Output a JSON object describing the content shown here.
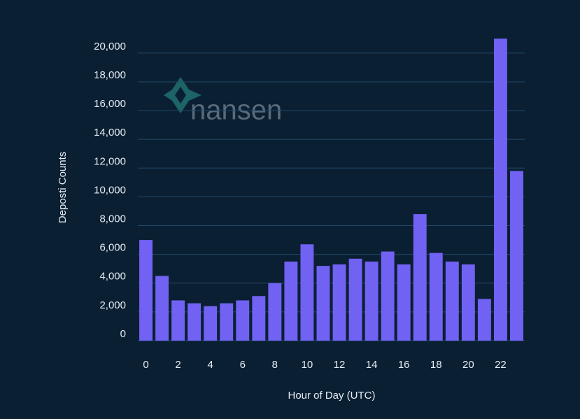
{
  "chart_data": {
    "type": "bar",
    "watermark": "nansen",
    "x_label": "Hour of Day (UTC)",
    "y_label": "Deposti Counts",
    "categories": [
      "0",
      null,
      "2",
      null,
      "4",
      null,
      "6",
      null,
      "8",
      null,
      "10",
      null,
      "12",
      null,
      "14",
      null,
      "16",
      null,
      "18",
      null,
      "20",
      null,
      "22",
      null
    ],
    "values": [
      7000,
      4500,
      2800,
      2600,
      2400,
      2600,
      2800,
      3100,
      4000,
      5500,
      6700,
      5200,
      5300,
      5700,
      5500,
      6200,
      5300,
      8800,
      6100,
      5500,
      5300,
      2900,
      21000,
      11800
    ],
    "color": "#7162f3",
    "ylim": [
      0,
      21500
    ],
    "yticks": [
      0,
      {
        "value": 2000,
        "label": "2,000"
      },
      {
        "value": 4000,
        "label": "4,000"
      },
      {
        "value": 6000,
        "label": "6,000"
      },
      {
        "value": 8000,
        "label": "8,000"
      },
      {
        "value": 10000,
        "label": "10,000"
      },
      {
        "value": 12000,
        "label": "12,000"
      },
      {
        "value": 14000,
        "label": "14,000"
      },
      {
        "value": 16000,
        "label": "16,000"
      },
      {
        "value": 18000,
        "label": "18,000"
      },
      {
        "value": 20000,
        "label": "20,000"
      }
    ],
    "grid": true
  }
}
